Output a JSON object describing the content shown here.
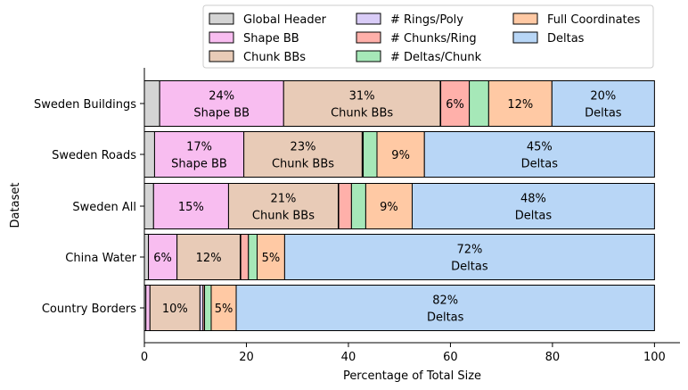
{
  "chart_data": {
    "type": "bar",
    "orientation": "horizontal",
    "stacked": true,
    "xlabel": "Percentage of Total Size",
    "ylabel": "Dataset",
    "xlim": [
      0,
      105
    ],
    "xticks": [
      0,
      20,
      40,
      60,
      80,
      100
    ],
    "legend_position": "top-right",
    "categories": [
      "Sweden Buildings",
      "Sweden Roads",
      "Sweden All",
      "China Water",
      "Country Borders"
    ],
    "series": [
      {
        "name": "Global Header",
        "color": "#d4d4d4",
        "values": [
          3.0,
          2.0,
          1.8,
          0.8,
          0.3
        ],
        "labels": [
          "",
          "",
          "",
          "",
          ""
        ]
      },
      {
        "name": "Shape BB",
        "color": "#f8bdf0",
        "values": [
          24.3,
          17.5,
          14.7,
          5.6,
          0.8
        ],
        "labels": [
          "24%\nShape BB",
          "17%\nShape BB",
          "15%",
          "6%",
          ""
        ]
      },
      {
        "name": "Chunk BBs",
        "color": "#e8cbb7",
        "values": [
          30.7,
          23.2,
          21.5,
          12.4,
          9.8
        ],
        "labels": [
          "31%\nChunk BBs",
          "23%\nChunk BBs",
          "21%\nChunk BBs",
          "12%",
          "10%"
        ]
      },
      {
        "name": "# Rings/Poly",
        "color": "#d9ccf7",
        "values": [
          0.1,
          0.1,
          0.1,
          0.1,
          0.6
        ],
        "labels": [
          "",
          "",
          "",
          "",
          ""
        ]
      },
      {
        "name": "# Chunks/Ring",
        "color": "#ffb0aa",
        "values": [
          5.6,
          0.1,
          2.5,
          1.5,
          0.3
        ],
        "labels": [
          "6%",
          "",
          "",
          "",
          ""
        ]
      },
      {
        "name": "# Deltas/Chunk",
        "color": "#a6e8b8",
        "values": [
          3.8,
          2.7,
          2.8,
          1.7,
          1.3
        ],
        "labels": [
          "",
          "",
          "",
          "",
          ""
        ]
      },
      {
        "name": "Full Coordinates",
        "color": "#ffc9a4",
        "values": [
          12.4,
          9.3,
          9.1,
          5.4,
          4.9
        ],
        "labels": [
          "12%",
          "9%",
          "9%",
          "5%",
          "5%"
        ]
      },
      {
        "name": "Deltas",
        "color": "#b8d6f6",
        "values": [
          20.1,
          45.1,
          47.5,
          72.5,
          82.0
        ],
        "labels": [
          "20%\nDeltas",
          "45%\nDeltas",
          "48%\nDeltas",
          "72%\nDeltas",
          "82%\nDeltas"
        ]
      }
    ]
  }
}
